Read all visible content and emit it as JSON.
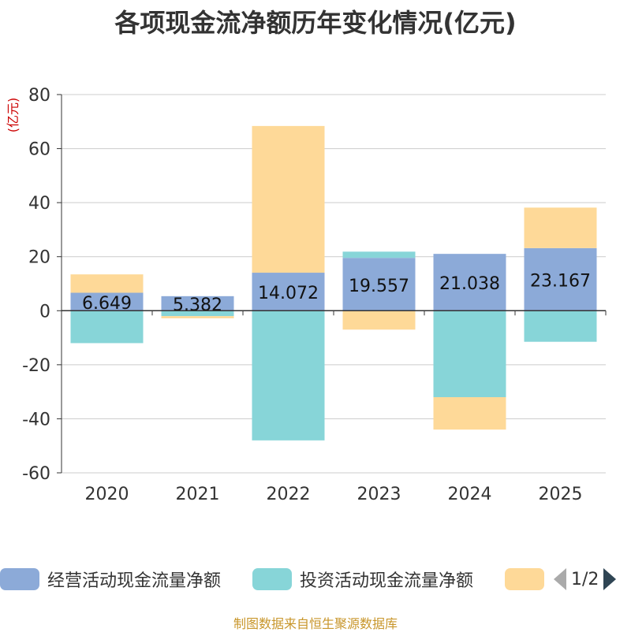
{
  "chart_data": {
    "type": "bar",
    "title": "各项现金流净额历年变化情况(亿元)",
    "ylabel": "(亿元)",
    "xlabel": "",
    "ylim": [
      -60,
      80
    ],
    "yticks": [
      80,
      60,
      40,
      20,
      0,
      -20,
      -40,
      -60
    ],
    "categories": [
      "2020",
      "2021",
      "2022",
      "2023",
      "2024",
      "2025"
    ],
    "stacked": true,
    "series": [
      {
        "name": "经营活动现金流量净额",
        "color": "#8caad8",
        "values": [
          6.649,
          5.382,
          14.072,
          19.557,
          21.038,
          23.167
        ],
        "labels": [
          "6.649",
          "5.382",
          "14.072",
          "19.557",
          "21.038",
          "23.167"
        ]
      },
      {
        "name": "投资活动现金流量净额",
        "color": "#87d5d8",
        "values": [
          -12,
          -2,
          -48,
          2.3,
          -32,
          -11.5
        ]
      },
      {
        "name": "",
        "color": "#fed998",
        "values": [
          6.8,
          -0.8,
          54.3,
          -7,
          -12,
          15
        ]
      }
    ]
  },
  "legend": {
    "page": "1/2"
  },
  "footer": "制图数据来自恒生聚源数据库"
}
